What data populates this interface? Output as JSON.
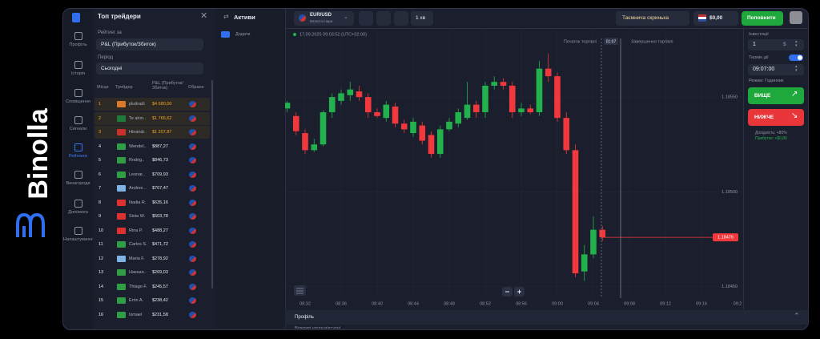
{
  "brand": "Binolla",
  "nav": [
    "Профіль",
    "Історія",
    "Сповіщення",
    "Сигнали",
    "Рейтинги",
    "Винагороди",
    "Допомога",
    "Налаштування"
  ],
  "traders_panel": {
    "title": "Топ трейдери",
    "rating_label": "Рейтинг за",
    "rating_value": "P&L (Прибуток/Збиток)",
    "period_label": "Період",
    "period_value": "Сьогодні",
    "columns": [
      "Місце",
      "Трейдер",
      "P&L (Прибуток/Збиток)",
      "Обране"
    ],
    "rows": [
      {
        "rank": 1,
        "name": "pluttradi",
        "pnl": "$4 680,00"
      },
      {
        "rank": 2,
        "name": "Te ahm..",
        "pnl": "$1 765,62"
      },
      {
        "rank": 3,
        "name": "Hinandr..",
        "pnl": "$1 207,87"
      },
      {
        "rank": 4,
        "name": "Wendel..",
        "pnl": "$887,27"
      },
      {
        "rank": 5,
        "name": "Rodrig..",
        "pnl": "$846,73"
      },
      {
        "rank": 6,
        "name": "Leonar..",
        "pnl": "$709,93"
      },
      {
        "rank": 7,
        "name": "Andres ..",
        "pnl": "$707,47"
      },
      {
        "rank": 8,
        "name": "Nadia R.",
        "pnl": "$635,16"
      },
      {
        "rank": 9,
        "name": "Sixta W.",
        "pnl": "$503,78"
      },
      {
        "rank": 10,
        "name": "Rina P.",
        "pnl": "$488,27"
      },
      {
        "rank": 11,
        "name": "Carlos S.",
        "pnl": "$471,72"
      },
      {
        "rank": 12,
        "name": "Maria F.",
        "pnl": "$278,92"
      },
      {
        "rank": 13,
        "name": "Hassan..",
        "pnl": "$269,03"
      },
      {
        "rank": 14,
        "name": "Thiago F.",
        "pnl": "$245,57"
      },
      {
        "rank": 15,
        "name": "Erón A.",
        "pnl": "$238,42"
      },
      {
        "rank": 16,
        "name": "Ismael",
        "pnl": "$231,58"
      }
    ]
  },
  "assets": {
    "title": "Активи",
    "add": "Додати"
  },
  "topbar": {
    "pair": "EUR/USD",
    "pair_type": "Валютні пари",
    "timeframe": "1 хв",
    "mystery_box": "Таємнича скринька",
    "balance": "$0,00",
    "deposit": "Поповнити"
  },
  "chart": {
    "type": "candlestick",
    "timestamp": "17.09.2025 09:03:52 (UTC+02:00)",
    "trade_start_label": "Початок торгівлі",
    "trade_end_label": "Завершення торгівлі",
    "timer": "01:07",
    "up_color": "#22b14c",
    "down_color": "#f0383d",
    "x": [
      "08:30",
      "08:31",
      "08:32",
      "08:33",
      "08:34",
      "08:35",
      "08:36",
      "08:37",
      "08:38",
      "08:39",
      "08:40",
      "08:41",
      "08:42",
      "08:43",
      "08:44",
      "08:45",
      "08:46",
      "08:47",
      "08:48",
      "08:49",
      "08:50",
      "08:51",
      "08:52",
      "08:53",
      "08:54",
      "08:55",
      "08:56",
      "08:57",
      "08:58",
      "08:59",
      "09:00",
      "09:01",
      "09:02",
      "09:03",
      "09:04",
      "09:05"
    ],
    "open": [
      1.18544,
      1.1854,
      1.18531,
      1.18522,
      1.18525,
      1.18542,
      1.18548,
      1.18551,
      1.18553,
      1.1855,
      1.18542,
      1.18539,
      1.18545,
      1.18536,
      1.18531,
      1.18535,
      1.1853,
      1.1852,
      1.18533,
      1.18536,
      1.18539,
      1.18546,
      1.18542,
      1.18556,
      1.18558,
      1.18556,
      1.18542,
      1.18544,
      1.18542,
      1.18565,
      1.18561,
      1.18539,
      1.18522,
      1.18458,
      1.18467,
      1.1848
    ],
    "high": [
      1.18548,
      1.18542,
      1.18533,
      1.18528,
      1.18543,
      1.18552,
      1.18554,
      1.18558,
      1.18556,
      1.18552,
      1.18544,
      1.18548,
      1.18547,
      1.18538,
      1.18539,
      1.18537,
      1.18532,
      1.18535,
      1.18539,
      1.18544,
      1.18558,
      1.18548,
      1.18558,
      1.18561,
      1.1856,
      1.18558,
      1.18547,
      1.18546,
      1.18569,
      1.18573,
      1.18563,
      1.18542,
      1.18525,
      1.18472,
      1.18487,
      1.18482
    ],
    "low": [
      1.18542,
      1.1853,
      1.1852,
      1.18521,
      1.18524,
      1.18539,
      1.18546,
      1.18548,
      1.18548,
      1.18539,
      1.18539,
      1.18537,
      1.18534,
      1.18531,
      1.18529,
      1.18525,
      1.18518,
      1.18518,
      1.18532,
      1.18534,
      1.18538,
      1.18539,
      1.18539,
      1.18554,
      1.18554,
      1.18539,
      1.1854,
      1.18541,
      1.1854,
      1.18558,
      1.18537,
      1.1852,
      1.18455,
      1.18453,
      1.18465,
      1.18474
    ],
    "close": [
      1.18547,
      1.18532,
      1.18522,
      1.18525,
      1.18542,
      1.1855,
      1.18552,
      1.18554,
      1.1855,
      1.18542,
      1.1854,
      1.18546,
      1.18536,
      1.18533,
      1.18537,
      1.18527,
      1.1852,
      1.18533,
      1.18537,
      1.18542,
      1.18546,
      1.18542,
      1.18556,
      1.18558,
      1.18556,
      1.18542,
      1.18544,
      1.18542,
      1.18565,
      1.18561,
      1.18539,
      1.18522,
      1.18457,
      1.18467,
      1.1848,
      1.18476
    ],
    "current_price": 1.18476,
    "ylim": [
      1.18438,
      1.18586
    ],
    "yticks": [
      {
        "value": 1.1855,
        "label": "1.18550"
      },
      {
        "value": 1.185,
        "label": "1.18500"
      },
      {
        "value": 1.1845,
        "label": "1.18450"
      }
    ],
    "xticks": [
      "08:32",
      "08:36",
      "08:40",
      "08:44",
      "08:48",
      "08:52",
      "08:56",
      "09:00",
      "09:04",
      "09:08",
      "09:12",
      "09:16",
      "09:2"
    ]
  },
  "trade_panel": {
    "invest_label": "Інвестиції",
    "amount": "1",
    "currency": "$",
    "expiry_label": "Термін дії",
    "expiry": "09:07:00",
    "mode": "Режим: Годинник",
    "up": "ВИЩЕ",
    "down": "НИЖЧЕ",
    "yield": "Дохідність: +80%",
    "profit": "Прибуток: +$0,80"
  },
  "bottom": {
    "tab": "Профіль",
    "status": "Відкриті угоди відсутні"
  }
}
